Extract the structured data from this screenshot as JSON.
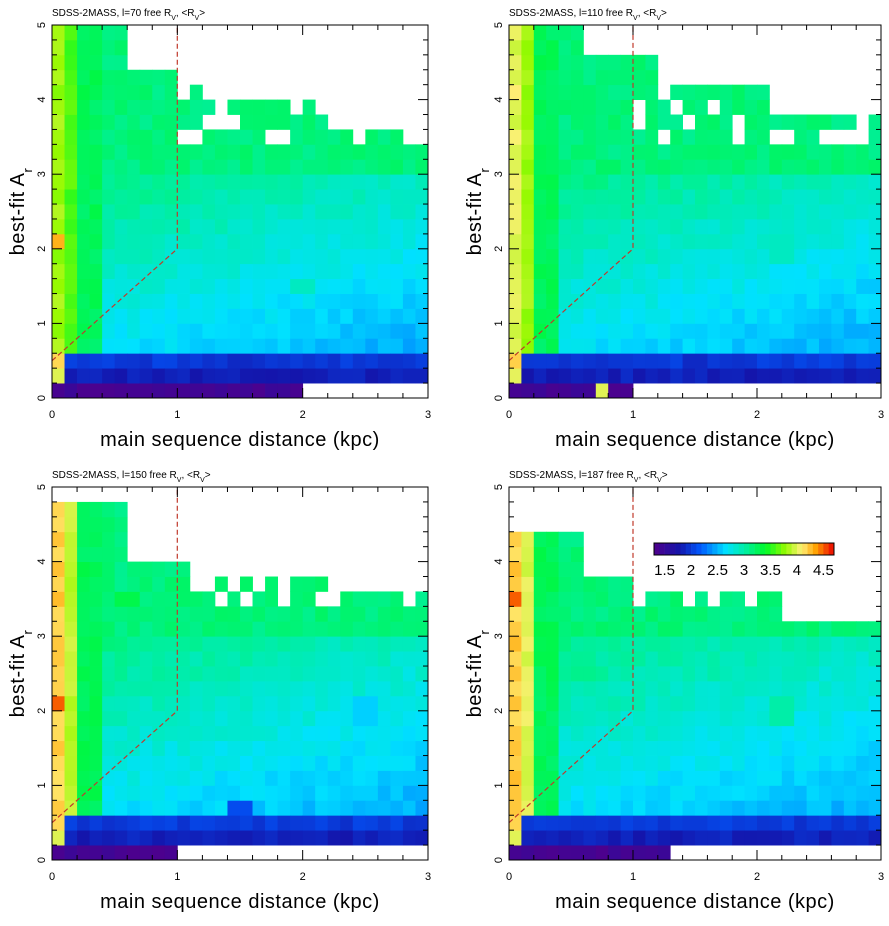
{
  "figure": {
    "colorbar": {
      "label_values": [
        "1.5",
        "2",
        "2.5",
        "3",
        "3.5",
        "4",
        "4.5"
      ],
      "range": [
        1.3,
        4.7
      ],
      "colormap": "rainbow (purple-blue-cyan-green-yellow-orange-red)"
    }
  },
  "chart_data": [
    {
      "type": "heatmap",
      "title": "SDSS-2MASS, l=70 free R_V, <R_V>",
      "title_main": "SDSS-2MASS, l=70 free R",
      "title_end": "<R",
      "xlabel": "main sequence distance (kpc)",
      "ylabel_main": "best-fit A",
      "ylabel_sub": "r",
      "xlim": [
        0,
        3
      ],
      "ylim": [
        0,
        5
      ],
      "xticks": [
        "0",
        "1",
        "2",
        "3"
      ],
      "yticks": [
        "0",
        "1",
        "2",
        "3",
        "4",
        "5"
      ],
      "overlay_line": [
        [
          0,
          0.5
        ],
        [
          1,
          2
        ],
        [
          1,
          5
        ]
      ],
      "cell": {
        "dx": 0.1,
        "dy": 0.2
      },
      "value_meaning": "mean best-fit R_V per bin",
      "sample_bins": [
        {
          "x": 0.05,
          "y": 2.1,
          "value": 4.3
        },
        {
          "x": 0.55,
          "y": 4.3,
          "value": 3.2
        },
        {
          "x": 2.0,
          "y": 1.5,
          "value": 2.9
        },
        {
          "x": 1.5,
          "y": 0.5,
          "value": 1.9
        },
        {
          "x": 1.0,
          "y": 0.1,
          "value": 1.4
        }
      ]
    },
    {
      "type": "heatmap",
      "title": "SDSS-2MASS, l=110 free R_V, <R_V>",
      "title_main": "SDSS-2MASS, l=110 free R",
      "title_end": "<R",
      "xlabel": "main sequence distance (kpc)",
      "ylabel_main": "best-fit A",
      "ylabel_sub": "r",
      "xlim": [
        0,
        3
      ],
      "ylim": [
        0,
        5
      ],
      "xticks": [
        "0",
        "1",
        "2",
        "3"
      ],
      "yticks": [
        "0",
        "1",
        "2",
        "3",
        "4",
        "5"
      ],
      "overlay_line": [
        [
          0,
          0.5
        ],
        [
          1,
          2
        ],
        [
          1,
          5
        ]
      ],
      "cell": {
        "dx": 0.1,
        "dy": 0.2
      },
      "value_meaning": "mean best-fit R_V per bin",
      "sample_bins": [
        {
          "x": 0.05,
          "y": 4.1,
          "value": 4.1
        },
        {
          "x": 0.6,
          "y": 4.0,
          "value": 3.2
        },
        {
          "x": 2.2,
          "y": 2.0,
          "value": 2.9
        },
        {
          "x": 1.5,
          "y": 0.5,
          "value": 1.9
        },
        {
          "x": 0.75,
          "y": 0.1,
          "value": 4.0
        }
      ]
    },
    {
      "type": "heatmap",
      "title": "SDSS-2MASS, l=150 free R_V, <R_V>",
      "title_main": "SDSS-2MASS, l=150 free R",
      "title_end": "<R",
      "xlabel": "main sequence distance (kpc)",
      "ylabel_main": "best-fit A",
      "ylabel_sub": "r",
      "xlim": [
        0,
        3
      ],
      "ylim": [
        0,
        5
      ],
      "xticks": [
        "0",
        "1",
        "2",
        "3"
      ],
      "yticks": [
        "0",
        "1",
        "2",
        "3",
        "4",
        "5"
      ],
      "overlay_line": [
        [
          0,
          0.5
        ],
        [
          1,
          2
        ],
        [
          1,
          5
        ]
      ],
      "cell": {
        "dx": 0.1,
        "dy": 0.2
      },
      "value_meaning": "mean best-fit R_V per bin",
      "sample_bins": [
        {
          "x": 0.05,
          "y": 2.1,
          "value": 4.5
        },
        {
          "x": 0.6,
          "y": 3.5,
          "value": 3.3
        },
        {
          "x": 2.5,
          "y": 2.0,
          "value": 2.6
        },
        {
          "x": 1.5,
          "y": 0.7,
          "value": 2.1
        },
        {
          "x": 0.35,
          "y": 0.1,
          "value": 1.4
        }
      ]
    },
    {
      "type": "heatmap",
      "title": "SDSS-2MASS, l=187 free R_V, <R_V>",
      "title_main": "SDSS-2MASS, l=187 free R",
      "title_end": "<R",
      "xlabel": "main sequence distance (kpc)",
      "ylabel_main": "best-fit A",
      "ylabel_sub": "r",
      "xlim": [
        0,
        3
      ],
      "ylim": [
        0,
        5
      ],
      "xticks": [
        "0",
        "1",
        "2",
        "3"
      ],
      "yticks": [
        "0",
        "1",
        "2",
        "3",
        "4",
        "5"
      ],
      "overlay_line": [
        [
          0,
          0.5
        ],
        [
          1,
          2
        ],
        [
          1,
          5
        ]
      ],
      "cell": {
        "dx": 0.1,
        "dy": 0.2
      },
      "value_meaning": "mean best-fit R_V per bin",
      "sample_bins": [
        {
          "x": 0.05,
          "y": 3.5,
          "value": 4.5
        },
        {
          "x": 0.6,
          "y": 2.5,
          "value": 3.1
        },
        {
          "x": 2.2,
          "y": 2.0,
          "value": 3.0
        },
        {
          "x": 1.5,
          "y": 0.5,
          "value": 2.0
        },
        {
          "x": 0.6,
          "y": 0.1,
          "value": 1.4
        }
      ]
    }
  ]
}
